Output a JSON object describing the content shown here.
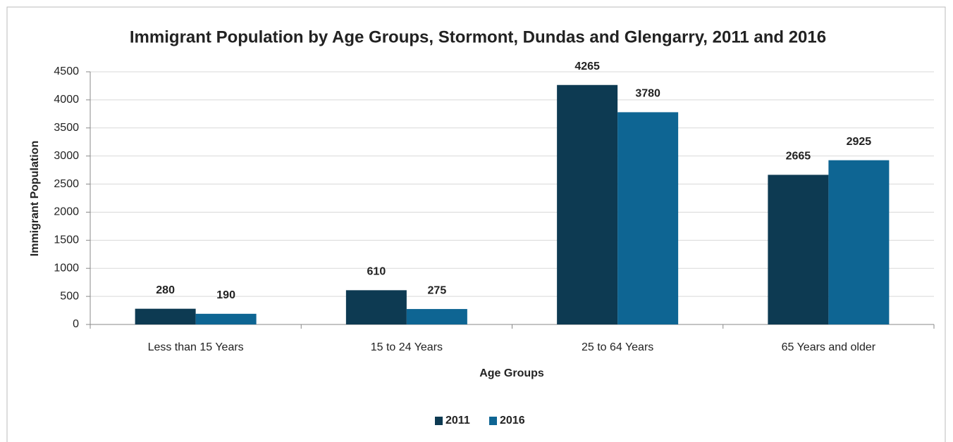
{
  "chart_data": {
    "type": "bar",
    "title": "Immigrant Population by Age Groups, Stormont, Dundas and Glengarry, 2011 and 2016",
    "x_label": "Age Groups",
    "y_label": "Immigrant  Population",
    "categories": [
      "Less than 15 Years",
      "15 to 24 Years",
      "25 to 64 Years",
      "65 Years and older"
    ],
    "series": [
      {
        "name": "2011",
        "color": "#0d3a52",
        "values": [
          280,
          610,
          4265,
          2665
        ]
      },
      {
        "name": "2016",
        "color": "#0e6593",
        "values": [
          190,
          275,
          3780,
          2925
        ]
      }
    ],
    "ylim": [
      0,
      4500
    ],
    "yticks": [
      0,
      500,
      1000,
      1500,
      2000,
      2500,
      3000,
      3500,
      4000,
      4500
    ],
    "grid": true,
    "legend": "bottom"
  }
}
